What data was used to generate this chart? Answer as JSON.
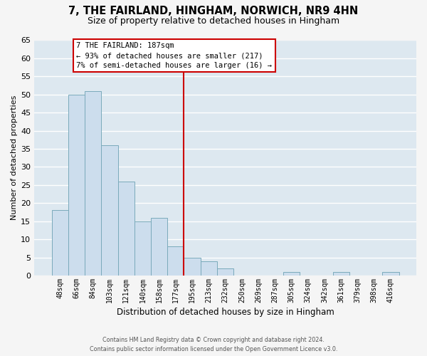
{
  "title": "7, THE FAIRLAND, HINGHAM, NORWICH, NR9 4HN",
  "subtitle": "Size of property relative to detached houses in Hingham",
  "xlabel": "Distribution of detached houses by size in Hingham",
  "ylabel": "Number of detached properties",
  "bar_labels": [
    "48sqm",
    "66sqm",
    "84sqm",
    "103sqm",
    "121sqm",
    "140sqm",
    "158sqm",
    "177sqm",
    "195sqm",
    "213sqm",
    "232sqm",
    "250sqm",
    "269sqm",
    "287sqm",
    "305sqm",
    "324sqm",
    "342sqm",
    "361sqm",
    "379sqm",
    "398sqm",
    "416sqm"
  ],
  "bar_heights": [
    18,
    50,
    51,
    36,
    26,
    15,
    16,
    8,
    5,
    4,
    2,
    0,
    0,
    0,
    1,
    0,
    0,
    1,
    0,
    0,
    1
  ],
  "bar_color": "#ccdded",
  "bar_edge_color": "#7aaabb",
  "ylim": [
    0,
    65
  ],
  "yticks": [
    0,
    5,
    10,
    15,
    20,
    25,
    30,
    35,
    40,
    45,
    50,
    55,
    60,
    65
  ],
  "property_line_color": "#cc0000",
  "annotation_title": "7 THE FAIRLAND: 187sqm",
  "annotation_line1": "← 93% of detached houses are smaller (217)",
  "annotation_line2": "7% of semi-detached houses are larger (16) →",
  "annotation_box_color": "#ffffff",
  "annotation_box_edge": "#cc0000",
  "footer_line1": "Contains HM Land Registry data © Crown copyright and database right 2024.",
  "footer_line2": "Contains public sector information licensed under the Open Government Licence v3.0.",
  "plot_bg_color": "#dde8f0",
  "fig_bg_color": "#f5f5f5",
  "grid_color": "#ffffff",
  "title_fontsize": 10.5,
  "subtitle_fontsize": 9
}
